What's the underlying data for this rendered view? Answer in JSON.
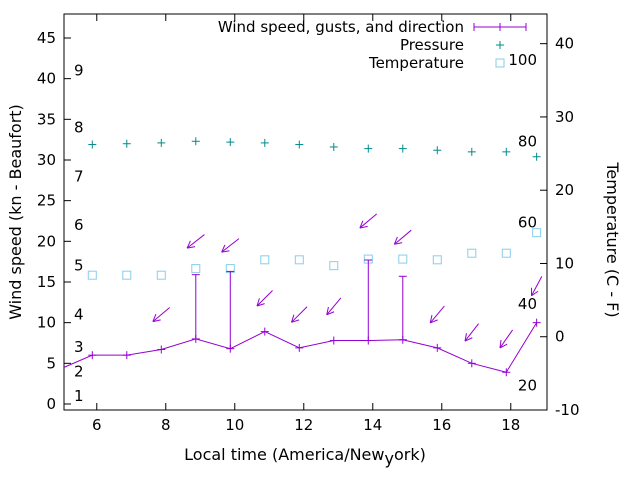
{
  "chart_data": {
    "type": "line",
    "background": "#ffffff",
    "grid": false,
    "legend_position": "top-right-inside",
    "xlabel": {
      "prefix": "Local time (America/New",
      "subscript": "y",
      "suffix": "ork)"
    },
    "ylabel_left": "Wind speed (kn - Beaufort)",
    "ylabel_right": "Temperature (C - F)",
    "x_range": [
      5.05,
      19.05
    ],
    "y_left_range": [
      -0.74,
      47.95
    ],
    "y_right_range": [
      -10,
      44.05
    ],
    "x_ticks": [
      6,
      8,
      10,
      12,
      14,
      16,
      18
    ],
    "y_left_ticks": [
      0,
      5,
      10,
      15,
      20,
      25,
      30,
      35,
      40,
      45
    ],
    "y_right_ticks": [
      -10,
      0,
      10,
      20,
      30,
      40
    ],
    "beaufort_labels": [
      {
        "label": "1",
        "kn": 1
      },
      {
        "label": "2",
        "kn": 4
      },
      {
        "label": "3",
        "kn": 7
      },
      {
        "label": "4",
        "kn": 11
      },
      {
        "label": "5",
        "kn": 17
      },
      {
        "label": "6",
        "kn": 22
      },
      {
        "label": "7",
        "kn": 28
      },
      {
        "label": "8",
        "kn": 34
      },
      {
        "label": "9",
        "kn": 41
      }
    ],
    "fahrenheit_labels": [
      {
        "label": "20",
        "c": -6.67
      },
      {
        "label": "40",
        "c": 4.44
      },
      {
        "label": "60",
        "c": 15.56
      },
      {
        "label": "80",
        "c": 26.67
      },
      {
        "label": "100",
        "c": 37.78
      }
    ],
    "legend": [
      {
        "label": "Wind speed, gusts, and direction",
        "color": "#9400d3",
        "marker": "errorbar-line-plus"
      },
      {
        "label": "Pressure",
        "color": "#008b8b",
        "marker": "plus"
      },
      {
        "label": "Temperature",
        "color": "#87ceeb",
        "marker": "open-square"
      }
    ],
    "series": {
      "wind": {
        "name": "Wind speed, gusts, and direction",
        "color": "#9400d3",
        "line_start": {
          "x": 5.05,
          "kn": 4.5
        },
        "x": [
          5.87,
          6.87,
          7.87,
          8.87,
          9.87,
          10.87,
          11.87,
          12.87,
          13.87,
          14.87,
          15.87,
          16.87,
          17.87,
          18.75
        ],
        "speed_kn": [
          6.0,
          6.0,
          6.7,
          8.0,
          6.8,
          8.9,
          6.9,
          7.8,
          7.8,
          7.9,
          6.9,
          5.0,
          3.9,
          10.0
        ],
        "gust_kn": [
          null,
          null,
          null,
          15.9,
          16.3,
          null,
          null,
          null,
          17.7,
          15.7,
          null,
          null,
          null,
          null
        ]
      },
      "wind_direction_arrows": [
        {
          "x": 7.87,
          "kn": 11.0,
          "angle_deg": 140
        },
        {
          "x": 8.87,
          "kn": 20.0,
          "angle_deg": 142
        },
        {
          "x": 9.87,
          "kn": 19.5,
          "angle_deg": 142
        },
        {
          "x": 10.87,
          "kn": 13.0,
          "angle_deg": 135
        },
        {
          "x": 11.87,
          "kn": 11.0,
          "angle_deg": 135
        },
        {
          "x": 12.87,
          "kn": 12.0,
          "angle_deg": 130
        },
        {
          "x": 13.87,
          "kn": 22.5,
          "angle_deg": 140
        },
        {
          "x": 14.87,
          "kn": 20.5,
          "angle_deg": 140
        },
        {
          "x": 15.87,
          "kn": 11.0,
          "angle_deg": 130
        },
        {
          "x": 16.87,
          "kn": 8.8,
          "angle_deg": 128
        },
        {
          "x": 17.87,
          "kn": 8.0,
          "angle_deg": 125
        },
        {
          "x": 18.75,
          "kn": 14.5,
          "angle_deg": 118
        }
      ],
      "pressure": {
        "name": "Pressure",
        "color": "#008b8b",
        "units": "plotted on left-axis scale (pressure axis not labeled)",
        "x": [
          5.87,
          6.87,
          7.87,
          8.87,
          9.87,
          10.87,
          11.87,
          12.87,
          13.87,
          14.87,
          15.87,
          16.87,
          17.87,
          18.75
        ],
        "y": [
          31.9,
          32.0,
          32.1,
          32.3,
          32.2,
          32.1,
          31.9,
          31.6,
          31.4,
          31.4,
          31.2,
          31.0,
          31.0,
          30.4
        ]
      },
      "temperature": {
        "name": "Temperature",
        "color": "#87ceeb",
        "x": [
          5.87,
          6.87,
          7.87,
          8.87,
          9.87,
          10.87,
          11.87,
          12.87,
          13.87,
          14.87,
          15.87,
          16.87,
          17.87,
          18.75
        ],
        "c": [
          8.4,
          8.4,
          8.4,
          9.3,
          9.3,
          10.5,
          10.5,
          9.7,
          10.6,
          10.6,
          10.5,
          11.4,
          11.4,
          14.2
        ]
      }
    }
  }
}
